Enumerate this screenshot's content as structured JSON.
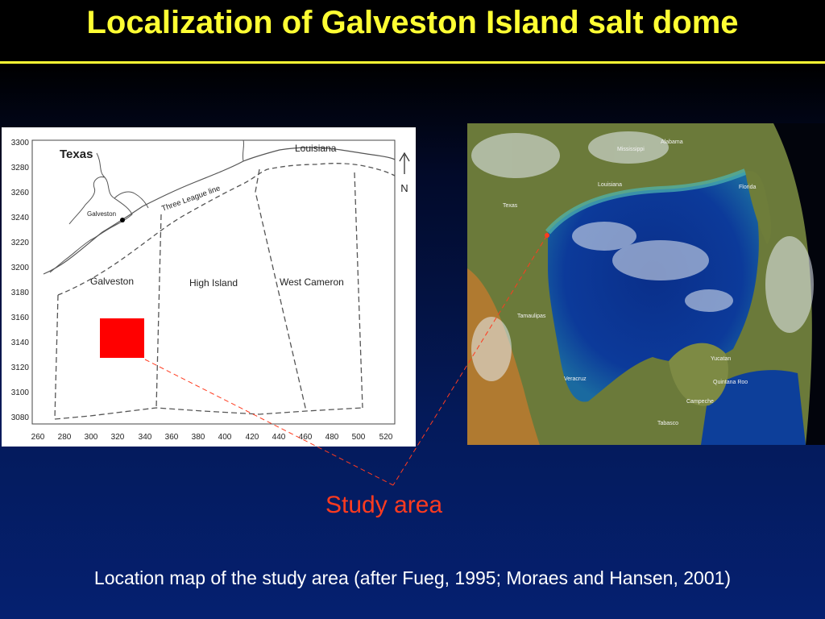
{
  "title": "Localization of Galveston Island salt dome",
  "map": {
    "y_ticks": [
      "3300",
      "3280",
      "3260",
      "3240",
      "3220",
      "3200",
      "3180",
      "3160",
      "3140",
      "3120",
      "3100",
      "3080"
    ],
    "x_ticks": [
      "260",
      "280",
      "300",
      "320",
      "340",
      "360",
      "380",
      "400",
      "420",
      "440",
      "460",
      "480",
      "500",
      "520"
    ],
    "labels": {
      "texas": "Texas",
      "louisiana": "Louisiana",
      "galveston_city": "Galveston",
      "three_league_line": "Three League line",
      "north": "N",
      "galveston_area": "Galveston",
      "high_island": "High Island",
      "west_cameron": "West Cameron"
    },
    "study_box_color": "#ff0000"
  },
  "satellite": {
    "labels": {
      "mississippi": "Mississippi",
      "alabama": "Alabama",
      "louisiana": "Louisiana",
      "florida": "Florida",
      "texas": "Texas",
      "tamaulipas": "Tamaulipas",
      "veracruz": "Veracruz",
      "yucatan": "Yucatan",
      "quintana_roo": "Quintana Roo",
      "campeche": "Campeche",
      "tabasco": "Tabasco"
    },
    "marker_color": "#ff3b1f"
  },
  "study_area_label": "Study area",
  "caption": "Location map of the study area (after Fueg, 1995; Moraes and Hansen, 2001)",
  "colors": {
    "title": "#ffff33",
    "accent": "#ff3b1f",
    "background_top": "#000000",
    "background_bottom": "#052070"
  }
}
